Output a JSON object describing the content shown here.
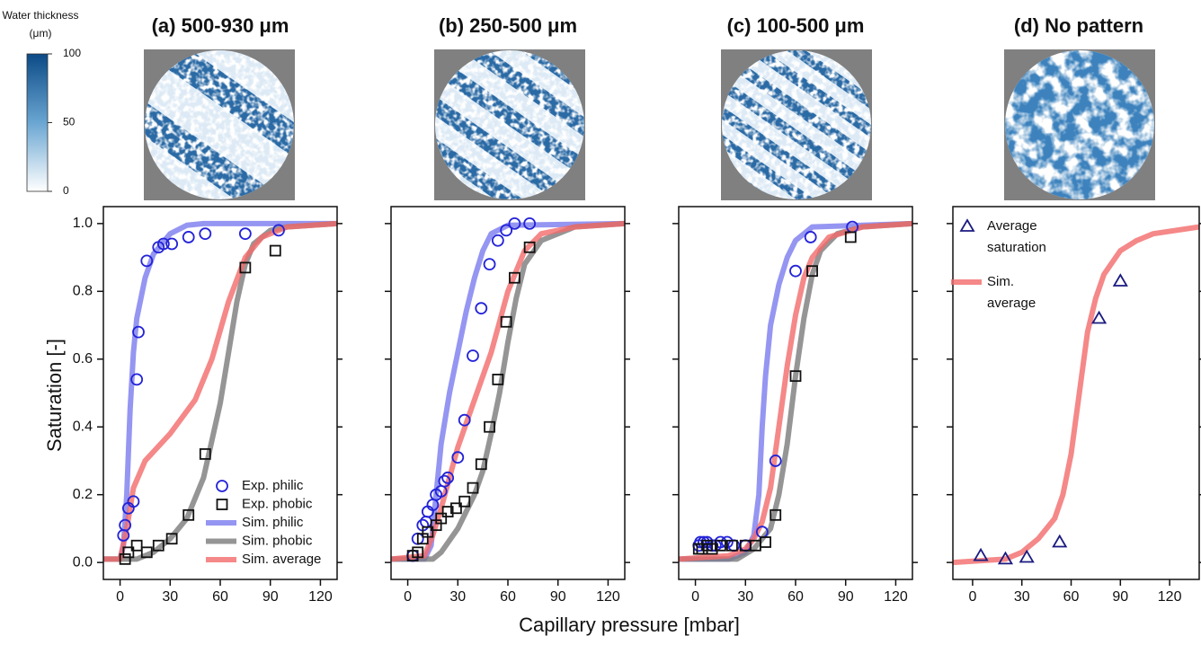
{
  "figure": {
    "xlabel": "Capillary pressure [mbar]",
    "ylabel": "Saturation [-]",
    "colorbar": {
      "title": "Water thickness",
      "unit": "(μm)",
      "lim": [
        0,
        100
      ],
      "ticks": [
        0,
        50,
        100
      ]
    }
  },
  "chart_data": [
    {
      "type": "line",
      "title": "(a) 500-930 μm",
      "xlim": [
        -10,
        130
      ],
      "ylim": [
        -0.05,
        1.05
      ],
      "xticks": [
        0,
        30,
        60,
        90,
        120
      ],
      "yticks": [
        {
          "value": 0,
          "label": "0.0"
        },
        {
          "value": 0.2,
          "label": "0.2"
        },
        {
          "value": 0.4,
          "label": "0.4"
        },
        {
          "value": 0.6,
          "label": "0.6"
        },
        {
          "value": 0.8,
          "label": "0.8"
        },
        {
          "value": 1,
          "label": "1.0"
        }
      ],
      "legend": "lower right",
      "series": [
        {
          "name": "Exp. philic",
          "type": "scatter",
          "marker": "circle",
          "color": "#2323d8",
          "x": [
            2,
            3,
            5,
            8,
            10,
            11,
            16,
            23,
            26,
            31,
            41,
            51,
            75,
            95
          ],
          "values": [
            0.08,
            0.11,
            0.16,
            0.18,
            0.54,
            0.68,
            0.89,
            0.93,
            0.94,
            0.94,
            0.96,
            0.97,
            0.97,
            0.98
          ]
        },
        {
          "name": "Exp. phobic",
          "type": "scatter",
          "marker": "square",
          "color": "#111111",
          "x": [
            3,
            5,
            10,
            16,
            23,
            31,
            41,
            51,
            75,
            93
          ],
          "values": [
            0.01,
            0.03,
            0.05,
            0.03,
            0.05,
            0.07,
            0.14,
            0.32,
            0.87,
            0.92
          ]
        },
        {
          "name": "Sim. philic",
          "type": "line",
          "color": "#7b7bef",
          "x": [
            -10,
            0,
            2,
            4,
            6,
            8,
            10,
            15,
            20,
            30,
            40,
            50,
            130
          ],
          "values": [
            0.01,
            0.01,
            0.05,
            0.2,
            0.45,
            0.62,
            0.72,
            0.84,
            0.91,
            0.97,
            0.995,
            1,
            1
          ]
        },
        {
          "name": "Sim. phobic",
          "type": "line",
          "color": "#7a7a7a",
          "x": [
            -10,
            10,
            20,
            30,
            40,
            50,
            60,
            65,
            70,
            75,
            80,
            90,
            100,
            130
          ],
          "values": [
            0.01,
            0.01,
            0.03,
            0.07,
            0.13,
            0.25,
            0.47,
            0.62,
            0.77,
            0.88,
            0.94,
            0.98,
            0.99,
            1
          ]
        },
        {
          "name": "Sim. average",
          "type": "line",
          "color": "#f26a6a",
          "x": [
            -10,
            0,
            4,
            8,
            15,
            30,
            45,
            55,
            65,
            75,
            85,
            100,
            130
          ],
          "values": [
            0.01,
            0.01,
            0.1,
            0.22,
            0.3,
            0.38,
            0.48,
            0.6,
            0.77,
            0.9,
            0.96,
            0.99,
            1
          ]
        }
      ]
    },
    {
      "type": "line",
      "title": "(b) 250-500 μm",
      "xlim": [
        -10,
        130
      ],
      "ylim": [
        -0.05,
        1.05
      ],
      "xticks": [
        0,
        30,
        60,
        90,
        120
      ],
      "yticks": [
        0,
        0.2,
        0.4,
        0.6,
        0.8,
        1
      ],
      "series": [
        {
          "name": "Exp. philic",
          "type": "scatter",
          "marker": "circle",
          "color": "#2323d8",
          "x": [
            3,
            6,
            9,
            11,
            12,
            15,
            17,
            20,
            22,
            24,
            30,
            34,
            39,
            44,
            49,
            54,
            59,
            64,
            73
          ],
          "values": [
            0.02,
            0.07,
            0.11,
            0.12,
            0.15,
            0.17,
            0.2,
            0.21,
            0.24,
            0.25,
            0.31,
            0.42,
            0.61,
            0.75,
            0.88,
            0.95,
            0.98,
            1,
            1
          ]
        },
        {
          "name": "Exp. phobic",
          "type": "scatter",
          "marker": "square",
          "color": "#111111",
          "x": [
            3,
            6,
            9,
            12,
            17,
            20,
            24,
            29,
            34,
            39,
            44,
            49,
            54,
            59,
            64,
            73
          ],
          "values": [
            0.02,
            0.03,
            0.07,
            0.09,
            0.11,
            0.13,
            0.15,
            0.16,
            0.18,
            0.22,
            0.29,
            0.4,
            0.54,
            0.71,
            0.84,
            0.93
          ]
        },
        {
          "name": "Sim. philic",
          "type": "line",
          "color": "#7b7bef",
          "x": [
            -10,
            10,
            14,
            17,
            20,
            25,
            30,
            35,
            40,
            45,
            50,
            60,
            130
          ],
          "values": [
            0.01,
            0.01,
            0.05,
            0.2,
            0.35,
            0.5,
            0.62,
            0.74,
            0.84,
            0.92,
            0.97,
            0.995,
            1
          ]
        },
        {
          "name": "Sim. phobic",
          "type": "line",
          "color": "#7a7a7a",
          "x": [
            -10,
            15,
            20,
            30,
            40,
            45,
            50,
            55,
            60,
            65,
            70,
            80,
            100,
            130
          ],
          "values": [
            0.01,
            0.01,
            0.03,
            0.1,
            0.2,
            0.27,
            0.38,
            0.5,
            0.65,
            0.78,
            0.88,
            0.95,
            0.99,
            1
          ]
        },
        {
          "name": "Sim. average",
          "type": "line",
          "color": "#f26a6a",
          "x": [
            -10,
            10,
            15,
            20,
            25,
            30,
            40,
            50,
            60,
            70,
            80,
            100,
            130
          ],
          "values": [
            0.01,
            0.02,
            0.08,
            0.16,
            0.25,
            0.34,
            0.48,
            0.62,
            0.8,
            0.92,
            0.97,
            0.99,
            1
          ]
        }
      ]
    },
    {
      "type": "line",
      "title": "(c) 100-500 μm",
      "xlim": [
        -10,
        130
      ],
      "ylim": [
        -0.05,
        1.05
      ],
      "xticks": [
        0,
        30,
        60,
        90,
        120
      ],
      "yticks": [
        0,
        0.2,
        0.4,
        0.6,
        0.8,
        1
      ],
      "series": [
        {
          "name": "Exp. philic",
          "type": "scatter",
          "marker": "circle",
          "color": "#2323d8",
          "x": [
            2,
            3,
            5,
            7,
            10,
            12,
            15,
            19,
            23,
            30,
            40,
            48,
            60,
            69,
            94
          ],
          "values": [
            0.05,
            0.06,
            0.06,
            0.06,
            0.05,
            0.05,
            0.06,
            0.06,
            0.05,
            0.05,
            0.09,
            0.3,
            0.86,
            0.96,
            0.99
          ]
        },
        {
          "name": "Exp. phobic",
          "type": "scatter",
          "marker": "square",
          "color": "#111111",
          "x": [
            2,
            4,
            7,
            10,
            15,
            22,
            30,
            36,
            42,
            48,
            60,
            70,
            93
          ],
          "values": [
            0.04,
            0.04,
            0.05,
            0.04,
            0.05,
            0.05,
            0.05,
            0.05,
            0.06,
            0.14,
            0.55,
            0.86,
            0.96
          ]
        },
        {
          "name": "Sim. philic",
          "type": "line",
          "color": "#7b7bef",
          "x": [
            -10,
            20,
            30,
            35,
            38,
            40,
            42,
            45,
            50,
            55,
            60,
            70,
            130
          ],
          "values": [
            0.01,
            0.01,
            0.03,
            0.08,
            0.2,
            0.4,
            0.55,
            0.7,
            0.82,
            0.9,
            0.95,
            0.99,
            1
          ]
        },
        {
          "name": "Sim. phobic",
          "type": "line",
          "color": "#7a7a7a",
          "x": [
            -10,
            25,
            35,
            45,
            50,
            55,
            60,
            65,
            70,
            75,
            85,
            100,
            130
          ],
          "values": [
            0.01,
            0.01,
            0.04,
            0.1,
            0.2,
            0.35,
            0.55,
            0.72,
            0.85,
            0.92,
            0.97,
            0.99,
            1
          ]
        },
        {
          "name": "Sim. average",
          "type": "line",
          "color": "#f26a6a",
          "x": [
            -10,
            20,
            30,
            35,
            40,
            45,
            50,
            55,
            60,
            65,
            70,
            80,
            100,
            130
          ],
          "values": [
            0.01,
            0.02,
            0.04,
            0.07,
            0.12,
            0.22,
            0.4,
            0.58,
            0.73,
            0.84,
            0.9,
            0.96,
            0.99,
            1
          ]
        }
      ]
    },
    {
      "type": "line",
      "title": "(d) No pattern",
      "xlim": [
        -12,
        138
      ],
      "ylim": [
        -0.05,
        1.05
      ],
      "xticks": [
        0,
        30,
        60,
        90,
        120
      ],
      "yticks": [
        0,
        0.2,
        0.4,
        0.6,
        0.8,
        1
      ],
      "legend": "upper left",
      "series": [
        {
          "name": "Average saturation",
          "type": "scatter",
          "marker": "triangle",
          "color": "#1a1a80",
          "x": [
            5,
            20,
            33,
            53,
            77,
            90
          ],
          "values": [
            0.02,
            0.01,
            0.015,
            0.06,
            0.72,
            0.83
          ]
        },
        {
          "name": "Sim. average",
          "type": "line",
          "color": "#f26a6a",
          "x": [
            -12,
            20,
            30,
            40,
            50,
            55,
            60,
            65,
            70,
            75,
            80,
            90,
            100,
            110,
            138
          ],
          "values": [
            0,
            0.01,
            0.03,
            0.07,
            0.13,
            0.2,
            0.32,
            0.5,
            0.68,
            0.78,
            0.85,
            0.92,
            0.95,
            0.97,
            0.99
          ]
        }
      ]
    }
  ]
}
